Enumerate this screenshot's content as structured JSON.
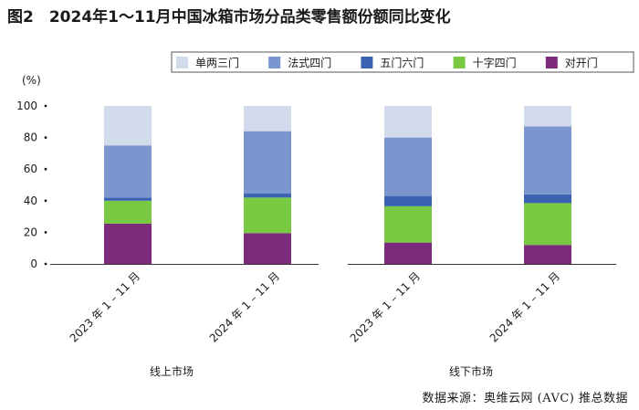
{
  "figure_title": "图2　2024年1～11月中国冰箱市场分品类零售额份额同比变化",
  "source": "数据来源：奥维云网 (AVC) 推总数据",
  "chart_data": [
    {
      "type": "bar",
      "stacked": true,
      "group_label": "线上市场",
      "y_unit": "(%)",
      "ylim": [
        0,
        100
      ],
      "yticks": [
        "0",
        "20",
        "40",
        "60",
        "80",
        "100"
      ],
      "categories": [
        "2023 年 1 – 11 月",
        "2024 年 1 – 11 月"
      ],
      "series": [
        {
          "name": "对开门",
          "values": [
            25.5,
            19.5
          ]
        },
        {
          "name": "十字四门",
          "values": [
            14.5,
            22.5
          ]
        },
        {
          "name": "五门六门",
          "values": [
            2,
            2.5
          ]
        },
        {
          "name": "法式四门",
          "values": [
            33,
            39.5
          ]
        },
        {
          "name": "单两三门",
          "values": [
            25,
            16
          ]
        }
      ]
    },
    {
      "type": "bar",
      "stacked": true,
      "group_label": "线下市场",
      "ylim": [
        0,
        100
      ],
      "categories": [
        "2023 年 1 – 11 月",
        "2024 年 1 – 11 月"
      ],
      "series": [
        {
          "name": "对开门",
          "values": [
            13.5,
            12
          ]
        },
        {
          "name": "十字四门",
          "values": [
            23,
            26.5
          ]
        },
        {
          "name": "五门六门",
          "values": [
            6.5,
            5.5
          ]
        },
        {
          "name": "法式四门",
          "values": [
            37,
            43
          ]
        },
        {
          "name": "单两三门",
          "values": [
            20,
            13
          ]
        }
      ]
    }
  ],
  "legend": {
    "placement": "top-right",
    "items": [
      {
        "name": "单两三门",
        "color": "#d2dbec"
      },
      {
        "name": "法式四门",
        "color": "#7b95cf"
      },
      {
        "name": "五门六门",
        "color": "#3a63b3"
      },
      {
        "name": "十字四门",
        "color": "#7ac943"
      },
      {
        "name": "对开门",
        "color": "#7b2a7c"
      }
    ]
  },
  "colors": {
    "对开门": "#7b2a7c",
    "十字四门": "#7ac943",
    "五门六门": "#3a63b3",
    "法式四门": "#7b95cf",
    "单两三门": "#d2dbec"
  }
}
